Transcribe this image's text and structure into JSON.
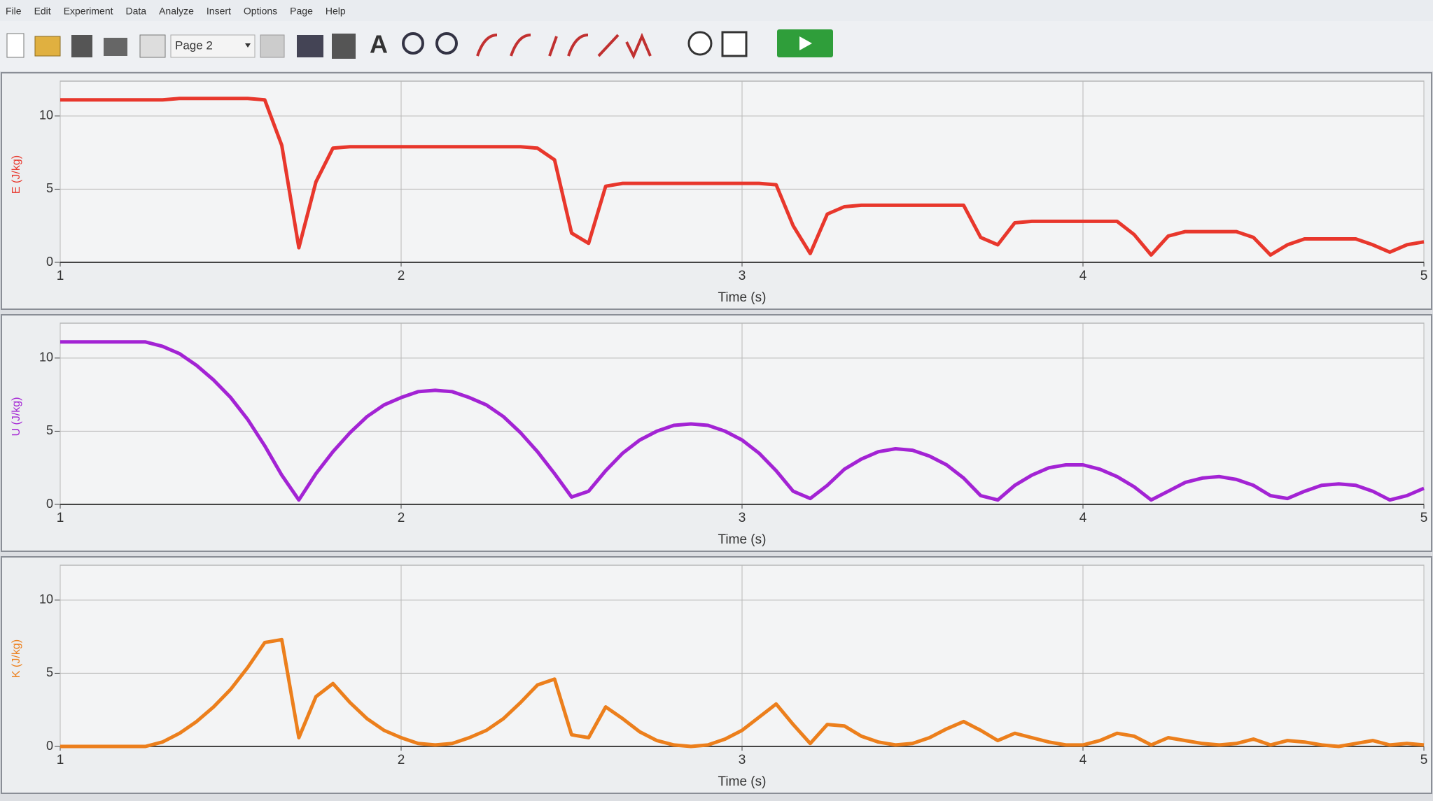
{
  "menu": [
    "File",
    "Edit",
    "Experiment",
    "Data",
    "Analyze",
    "Insert",
    "Options",
    "Page",
    "Help"
  ],
  "toolbar": {
    "page": "Page 2"
  },
  "chart_data": [
    {
      "type": "line",
      "ylabel": "E (J/kg)",
      "xlabel": "Time (s)",
      "color": "#e8372c",
      "grid": true,
      "xlim": [
        1,
        5
      ],
      "ylim": [
        0,
        12
      ],
      "xticks": [
        1,
        2,
        3,
        4,
        5
      ],
      "yticks": [
        0,
        5,
        10
      ],
      "x": [
        1,
        1.05,
        1.1,
        1.15,
        1.2,
        1.25,
        1.3,
        1.35,
        1.4,
        1.45,
        1.5,
        1.55,
        1.6,
        1.65,
        1.7,
        1.75,
        1.8,
        1.85,
        1.9,
        1.95,
        2,
        2.05,
        2.1,
        2.15,
        2.2,
        2.25,
        2.3,
        2.35,
        2.4,
        2.45,
        2.5,
        2.55,
        2.6,
        2.65,
        2.7,
        2.75,
        2.8,
        2.85,
        2.9,
        2.95,
        3,
        3.05,
        3.1,
        3.15,
        3.2,
        3.25,
        3.3,
        3.35,
        3.4,
        3.45,
        3.5,
        3.55,
        3.6,
        3.65,
        3.7,
        3.75,
        3.8,
        3.85,
        3.9,
        3.95,
        4,
        4.05,
        4.1,
        4.15,
        4.2,
        4.25,
        4.3,
        4.35,
        4.4,
        4.45,
        4.5,
        4.55,
        4.6,
        4.65,
        4.7,
        4.75,
        4.8,
        4.85,
        4.9,
        4.95,
        5
      ],
      "values": [
        11.1,
        11.1,
        11.1,
        11.1,
        11.1,
        11.1,
        11.1,
        11.2,
        11.2,
        11.2,
        11.2,
        11.2,
        11.1,
        8.0,
        1.0,
        5.5,
        7.8,
        7.9,
        7.9,
        7.9,
        7.9,
        7.9,
        7.9,
        7.9,
        7.9,
        7.9,
        7.9,
        7.9,
        7.8,
        7.0,
        2.0,
        1.3,
        5.2,
        5.4,
        5.4,
        5.4,
        5.4,
        5.4,
        5.4,
        5.4,
        5.4,
        5.4,
        5.3,
        2.5,
        0.6,
        3.3,
        3.8,
        3.9,
        3.9,
        3.9,
        3.9,
        3.9,
        3.9,
        3.9,
        1.7,
        1.2,
        2.7,
        2.8,
        2.8,
        2.8,
        2.8,
        2.8,
        2.8,
        1.9,
        0.5,
        1.8,
        2.1,
        2.1,
        2.1,
        2.1,
        1.7,
        0.5,
        1.2,
        1.6,
        1.6,
        1.6,
        1.6,
        1.2,
        0.7,
        1.2,
        1.4
      ]
    },
    {
      "type": "line",
      "ylabel": "U (J/kg)",
      "xlabel": "Time (s)",
      "color": "#a323d4",
      "grid": true,
      "xlim": [
        1,
        5
      ],
      "ylim": [
        0,
        12
      ],
      "xticks": [
        1,
        2,
        3,
        4,
        5
      ],
      "yticks": [
        0,
        5,
        10
      ],
      "x": [
        1,
        1.05,
        1.1,
        1.15,
        1.2,
        1.25,
        1.3,
        1.35,
        1.4,
        1.45,
        1.5,
        1.55,
        1.6,
        1.65,
        1.7,
        1.75,
        1.8,
        1.85,
        1.9,
        1.95,
        2,
        2.05,
        2.1,
        2.15,
        2.2,
        2.25,
        2.3,
        2.35,
        2.4,
        2.45,
        2.5,
        2.55,
        2.6,
        2.65,
        2.7,
        2.75,
        2.8,
        2.85,
        2.9,
        2.95,
        3,
        3.05,
        3.1,
        3.15,
        3.2,
        3.25,
        3.3,
        3.35,
        3.4,
        3.45,
        3.5,
        3.55,
        3.6,
        3.65,
        3.7,
        3.75,
        3.8,
        3.85,
        3.9,
        3.95,
        4,
        4.05,
        4.1,
        4.15,
        4.2,
        4.25,
        4.3,
        4.35,
        4.4,
        4.45,
        4.5,
        4.55,
        4.6,
        4.65,
        4.7,
        4.75,
        4.8,
        4.85,
        4.9,
        4.95,
        5
      ],
      "values": [
        11.1,
        11.1,
        11.1,
        11.1,
        11.1,
        11.1,
        10.8,
        10.3,
        9.5,
        8.5,
        7.3,
        5.8,
        4.0,
        2.0,
        0.3,
        2.1,
        3.6,
        4.9,
        6.0,
        6.8,
        7.3,
        7.7,
        7.8,
        7.7,
        7.3,
        6.8,
        6.0,
        4.9,
        3.6,
        2.1,
        0.5,
        0.9,
        2.3,
        3.5,
        4.4,
        5.0,
        5.4,
        5.5,
        5.4,
        5.0,
        4.4,
        3.5,
        2.3,
        0.9,
        0.4,
        1.3,
        2.4,
        3.1,
        3.6,
        3.8,
        3.7,
        3.3,
        2.7,
        1.8,
        0.6,
        0.3,
        1.3,
        2.0,
        2.5,
        2.7,
        2.7,
        2.4,
        1.9,
        1.2,
        0.3,
        0.9,
        1.5,
        1.8,
        1.9,
        1.7,
        1.3,
        0.6,
        0.4,
        0.9,
        1.3,
        1.4,
        1.3,
        0.9,
        0.3,
        0.6,
        1.1
      ]
    },
    {
      "type": "line",
      "ylabel": "K (J/kg)",
      "xlabel": "Time (s)",
      "color": "#ec7f1c",
      "grid": true,
      "xlim": [
        1,
        5
      ],
      "ylim": [
        0,
        12
      ],
      "xticks": [
        1,
        2,
        3,
        4,
        5
      ],
      "yticks": [
        0,
        5,
        10
      ],
      "x": [
        1,
        1.05,
        1.1,
        1.15,
        1.2,
        1.25,
        1.3,
        1.35,
        1.4,
        1.45,
        1.5,
        1.55,
        1.6,
        1.65,
        1.7,
        1.75,
        1.8,
        1.85,
        1.9,
        1.95,
        2,
        2.05,
        2.1,
        2.15,
        2.2,
        2.25,
        2.3,
        2.35,
        2.4,
        2.45,
        2.5,
        2.55,
        2.6,
        2.65,
        2.7,
        2.75,
        2.8,
        2.85,
        2.9,
        2.95,
        3,
        3.05,
        3.1,
        3.15,
        3.2,
        3.25,
        3.3,
        3.35,
        3.4,
        3.45,
        3.5,
        3.55,
        3.6,
        3.65,
        3.7,
        3.75,
        3.8,
        3.85,
        3.9,
        3.95,
        4,
        4.05,
        4.1,
        4.15,
        4.2,
        4.25,
        4.3,
        4.35,
        4.4,
        4.45,
        4.5,
        4.55,
        4.6,
        4.65,
        4.7,
        4.75,
        4.8,
        4.85,
        4.9,
        4.95,
        5
      ],
      "values": [
        0,
        0,
        0,
        0,
        0,
        0,
        0.3,
        0.9,
        1.7,
        2.7,
        3.9,
        5.4,
        7.1,
        7.3,
        0.6,
        3.4,
        4.3,
        3.0,
        1.9,
        1.1,
        0.6,
        0.2,
        0.1,
        0.2,
        0.6,
        1.1,
        1.9,
        3.0,
        4.2,
        4.6,
        0.8,
        0.6,
        2.7,
        1.9,
        1.0,
        0.4,
        0.1,
        0,
        0.1,
        0.5,
        1.1,
        2.0,
        2.9,
        1.5,
        0.2,
        1.5,
        1.4,
        0.7,
        0.3,
        0.1,
        0.2,
        0.6,
        1.2,
        1.7,
        1.1,
        0.4,
        0.9,
        0.6,
        0.3,
        0.1,
        0.1,
        0.4,
        0.9,
        0.7,
        0.1,
        0.6,
        0.4,
        0.2,
        0.1,
        0.2,
        0.5,
        0.1,
        0.4,
        0.3,
        0.1,
        0,
        0.2,
        0.4,
        0.1,
        0.2,
        0.1
      ]
    }
  ]
}
